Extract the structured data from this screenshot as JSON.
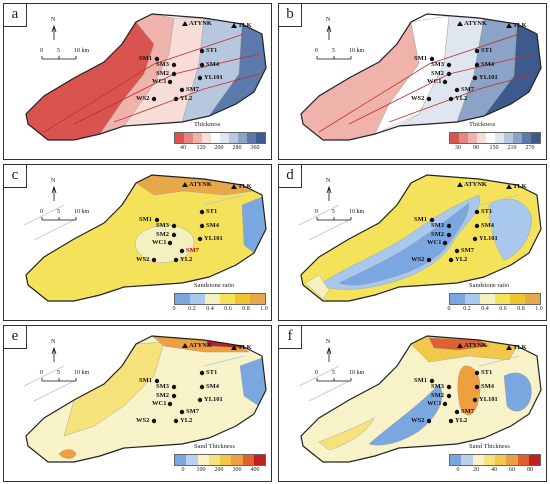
{
  "panels": [
    {
      "id": "a",
      "label": "a",
      "legend_title": "Thickness",
      "ticks": [
        "40",
        "120",
        "200",
        "280",
        "360"
      ],
      "colors": [
        "#d9534f",
        "#e8857f",
        "#f0b3ab",
        "#f7dcd8",
        "#ffffff",
        "#dfe6f0",
        "#b7c7de",
        "#8aa3c6",
        "#5b79aa",
        "#3c5b8c"
      ]
    },
    {
      "id": "b",
      "label": "b",
      "legend_title": "Thickness",
      "ticks": [
        "30",
        "90",
        "150",
        "210",
        "270"
      ],
      "colors": [
        "#d9534f",
        "#e8857f",
        "#f0b3ab",
        "#f7dcd8",
        "#ffffff",
        "#dfe6f0",
        "#b7c7de",
        "#8aa3c6",
        "#5b79aa",
        "#3c5b8c"
      ]
    },
    {
      "id": "c",
      "label": "c",
      "legend_title": "Sandstone ratio",
      "ticks": [
        "0",
        "0.2",
        "0.4",
        "0.6",
        "0.8",
        "1.0"
      ],
      "colors": [
        "#7ba7e0",
        "#a8c8ee",
        "#f4f0c0",
        "#f5e25b",
        "#f0c630",
        "#e8a84a"
      ]
    },
    {
      "id": "d",
      "label": "d",
      "legend_title": "Sandstone ratio",
      "ticks": [
        "0",
        "0.2",
        "0.4",
        "0.6",
        "0.8",
        "1.0"
      ],
      "colors": [
        "#7ba7e0",
        "#a8c8ee",
        "#f4f0c0",
        "#f5e25b",
        "#f0c630",
        "#e8a84a"
      ]
    },
    {
      "id": "e",
      "label": "e",
      "legend_title": "Sand Thickness",
      "ticks": [
        "0",
        "100",
        "200",
        "300",
        "400"
      ],
      "colors": [
        "#7ba7e0",
        "#b8d2ee",
        "#f7f2c8",
        "#f6e27a",
        "#f2c84a",
        "#ee9f3e",
        "#e06030",
        "#c02020"
      ]
    },
    {
      "id": "f",
      "label": "f",
      "legend_title": "Sand Thickness",
      "ticks": [
        "0",
        "20",
        "40",
        "60",
        "80"
      ],
      "colors": [
        "#7ba7e0",
        "#b8d2ee",
        "#f7f2c8",
        "#f6e27a",
        "#f2c84a",
        "#ee9f3e",
        "#e06030",
        "#c02020"
      ]
    }
  ],
  "wells": [
    "ATYNK",
    "TLK",
    "ST1",
    "SM1",
    "SM3",
    "SM4",
    "SM2",
    "YL101",
    "WC1",
    "SM7",
    "WS2",
    "YL2"
  ],
  "north_label": "N",
  "scale": {
    "zero": "0",
    "mid": "5",
    "end": "10 km"
  },
  "chart_data": [
    {
      "type": "other",
      "panel": "a",
      "legend_title": "Thickness",
      "legend_ticks": [
        40,
        120,
        200,
        280,
        360
      ]
    },
    {
      "type": "other",
      "panel": "b",
      "legend_title": "Thickness",
      "legend_ticks": [
        30,
        90,
        150,
        210,
        270
      ]
    },
    {
      "type": "other",
      "panel": "c",
      "legend_title": "Sandstone ratio",
      "legend_ticks": [
        0,
        0.2,
        0.4,
        0.6,
        0.8,
        1.0
      ]
    },
    {
      "type": "other",
      "panel": "d",
      "legend_title": "Sandstone ratio",
      "legend_ticks": [
        0,
        0.2,
        0.4,
        0.6,
        0.8,
        1.0
      ]
    },
    {
      "type": "other",
      "panel": "e",
      "legend_title": "Sand Thickness",
      "legend_ticks": [
        0,
        100,
        200,
        300,
        400
      ]
    },
    {
      "type": "other",
      "panel": "f",
      "legend_title": "Sand Thickness",
      "legend_ticks": [
        0,
        20,
        40,
        60,
        80
      ]
    }
  ]
}
